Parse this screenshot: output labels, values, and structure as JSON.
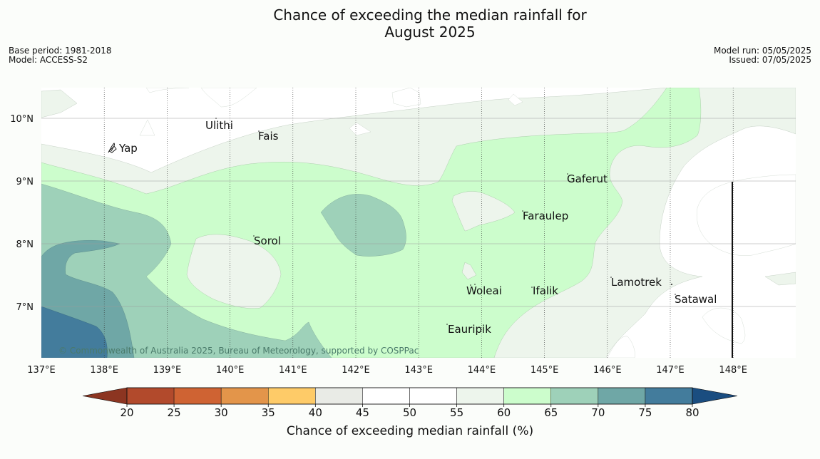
{
  "title": {
    "line1": "Chance of exceeding the median rainfall for",
    "line2": "August 2025"
  },
  "meta": {
    "base_period": "Base period: 1981-2018",
    "model": "Model: ACCESS-S2",
    "model_run": "Model run: 05/05/2025",
    "issued": "Issued: 07/05/2025"
  },
  "map": {
    "lon_labels": [
      "137°E",
      "138°E",
      "139°E",
      "140°E",
      "141°E",
      "142°E",
      "143°E",
      "144°E",
      "145°E",
      "146°E",
      "147°E",
      "148°E"
    ],
    "lat_labels": [
      "10°N",
      "9°N",
      "8°N",
      "7°N"
    ],
    "places": [
      {
        "name": "Ulithi"
      },
      {
        "name": "Fais"
      },
      {
        "name": "Yap"
      },
      {
        "name": "Gaferut"
      },
      {
        "name": "Faraulep"
      },
      {
        "name": "Sorol"
      },
      {
        "name": "Lamotrek"
      },
      {
        "name": "Woleai"
      },
      {
        "name": "Ifalik"
      },
      {
        "name": "Satawal"
      },
      {
        "name": "Eauripik"
      }
    ],
    "copyright": "© Commonwealth of Australia 2025, Bureau of Meteorology, supported by COSPPac"
  },
  "colorbar": {
    "ticks": [
      "20",
      "25",
      "30",
      "35",
      "40",
      "45",
      "50",
      "55",
      "60",
      "65",
      "70",
      "75",
      "80"
    ],
    "colors": [
      "#b24a2c",
      "#cf6333",
      "#e3954a",
      "#fecb68",
      "#e9ebe6",
      "#ffffff",
      "#ffffff",
      "#edf5ec",
      "#ccfdcc",
      "#9ed1b9",
      "#6fa7a6",
      "#437c9c",
      "#1f4e7e"
    ],
    "under_color": "#8c3521",
    "over_color": "#1a4d80",
    "label": "Chance of exceeding median rainfall (%)"
  },
  "legend_colors": {
    "c55": "#edf5ec",
    "c60": "#ccfdcc",
    "c65": "#9ed1b9",
    "c70": "#6fa7a6",
    "c75": "#437c9c"
  }
}
